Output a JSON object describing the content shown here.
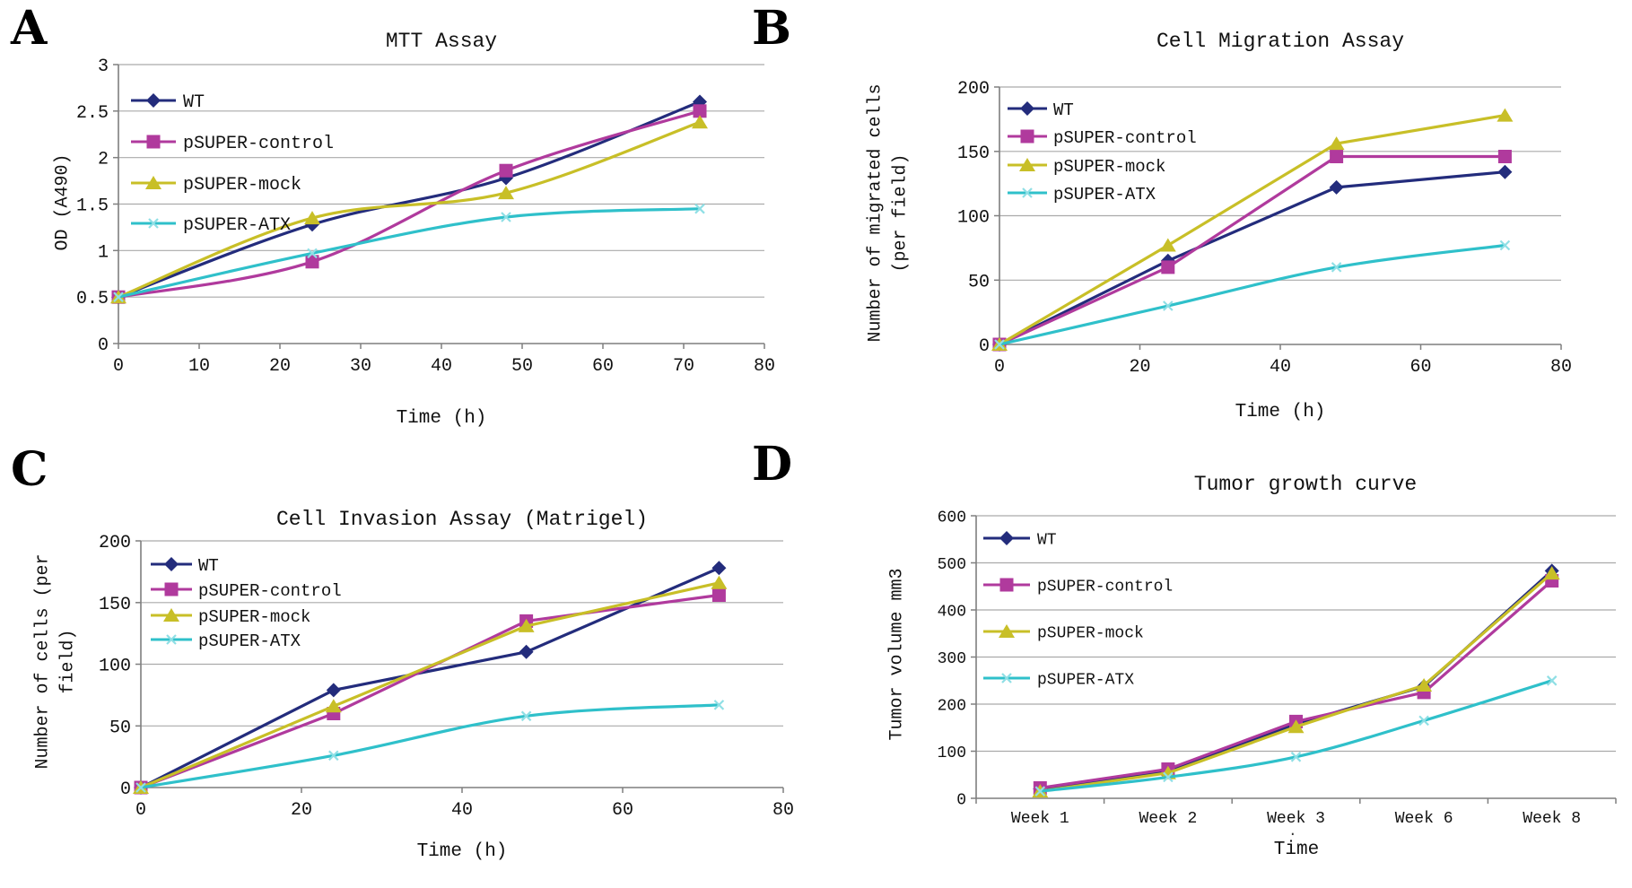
{
  "panels": [
    {
      "letter": "A"
    },
    {
      "letter": "B"
    },
    {
      "letter": "C"
    },
    {
      "letter": "D"
    }
  ],
  "colors": {
    "wt": "#232c7c",
    "control": "#b03a9d",
    "mock": "#c8bf27",
    "atx": "#2fc0ca",
    "atx_marker": "#8fdfe5",
    "grid": "#aaaaaa",
    "axis": "#7f7f7f",
    "text": "#111111"
  },
  "artifact_dot": ".",
  "chart_data": [
    {
      "type": "line",
      "panel": "A",
      "title": "MTT Assay",
      "xlabel": "Time (h)",
      "ylabel_lines": [
        "OD (A490)"
      ],
      "x": [
        0,
        24,
        48,
        72
      ],
      "xlim": [
        0,
        80
      ],
      "xticks": [
        0,
        10,
        20,
        30,
        40,
        50,
        60,
        70,
        80
      ],
      "xtick_labels": [
        "0",
        "10",
        "20",
        "30",
        "40",
        "50",
        "60",
        "70",
        "80"
      ],
      "ylim": [
        0,
        3
      ],
      "yticks": [
        0,
        0.5,
        1,
        1.5,
        2,
        2.5,
        3
      ],
      "ytick_labels": [
        "0",
        "0.5",
        "1",
        "1.5",
        "2",
        "2.5",
        "3"
      ],
      "grid": "horizontal",
      "legend_position": "top-left-inside",
      "series": [
        {
          "name": "WT",
          "color_key": "wt",
          "marker": "diamond",
          "smooth": true,
          "values": [
            0.5,
            1.28,
            1.78,
            2.6
          ]
        },
        {
          "name": "pSUPER-control",
          "color_key": "control",
          "marker": "square",
          "smooth": true,
          "values": [
            0.5,
            0.88,
            1.86,
            2.5
          ]
        },
        {
          "name": "pSUPER-mock",
          "color_key": "mock",
          "marker": "triangle",
          "smooth": true,
          "values": [
            0.5,
            1.35,
            1.62,
            2.38
          ]
        },
        {
          "name": "pSUPER-ATX",
          "color_key": "atx",
          "marker": "x",
          "smooth": true,
          "values": [
            0.5,
            0.97,
            1.36,
            1.45
          ]
        }
      ]
    },
    {
      "type": "line",
      "panel": "B",
      "title": "Cell Migration Assay",
      "xlabel": "Time (h)",
      "ylabel_lines": [
        "Number of migrated cells",
        "(per field)"
      ],
      "x": [
        0,
        24,
        48,
        72
      ],
      "xlim": [
        0,
        80
      ],
      "xticks": [
        0,
        20,
        40,
        60,
        80
      ],
      "xtick_labels": [
        "0",
        "20",
        "40",
        "60",
        "80"
      ],
      "ylim": [
        0,
        200
      ],
      "yticks": [
        0,
        50,
        100,
        150,
        200
      ],
      "ytick_labels": [
        "0",
        "50",
        "100",
        "150",
        "200"
      ],
      "grid": "horizontal",
      "legend_position": "top-left-inside",
      "series": [
        {
          "name": "WT",
          "color_key": "wt",
          "marker": "diamond",
          "smooth": false,
          "values": [
            0,
            65,
            122,
            134
          ]
        },
        {
          "name": "pSUPER-control",
          "color_key": "control",
          "marker": "square",
          "smooth": false,
          "values": [
            0,
            60,
            146,
            146
          ]
        },
        {
          "name": "pSUPER-mock",
          "color_key": "mock",
          "marker": "triangle",
          "smooth": false,
          "values": [
            0,
            77,
            156,
            178
          ]
        },
        {
          "name": "pSUPER-ATX",
          "color_key": "atx",
          "marker": "x",
          "smooth": true,
          "values": [
            0,
            30,
            60,
            77
          ]
        }
      ]
    },
    {
      "type": "line",
      "panel": "C",
      "title": "Cell Invasion Assay (Matrigel)",
      "xlabel": "Time (h)",
      "ylabel_lines": [
        "Number of cells (per",
        "field)"
      ],
      "x": [
        0,
        24,
        48,
        72
      ],
      "xlim": [
        0,
        80
      ],
      "xticks": [
        0,
        20,
        40,
        60,
        80
      ],
      "xtick_labels": [
        "0",
        "20",
        "40",
        "60",
        "80"
      ],
      "ylim": [
        0,
        200
      ],
      "yticks": [
        0,
        50,
        100,
        150,
        200
      ],
      "ytick_labels": [
        "0",
        "50",
        "100",
        "150",
        "200"
      ],
      "grid": "horizontal",
      "legend_position": "top-left-inside",
      "series": [
        {
          "name": "WT",
          "color_key": "wt",
          "marker": "diamond",
          "smooth": false,
          "values": [
            0,
            79,
            110,
            178
          ]
        },
        {
          "name": "pSUPER-control",
          "color_key": "control",
          "marker": "square",
          "smooth": false,
          "values": [
            0,
            60,
            135,
            156
          ]
        },
        {
          "name": "pSUPER-mock",
          "color_key": "mock",
          "marker": "triangle",
          "smooth": false,
          "values": [
            0,
            66,
            131,
            166
          ]
        },
        {
          "name": "pSUPER-ATX",
          "color_key": "atx",
          "marker": "x",
          "smooth": true,
          "values": [
            0,
            26,
            58,
            67
          ]
        }
      ]
    },
    {
      "type": "line",
      "panel": "D",
      "title": "Tumor growth curve",
      "xlabel": "Time",
      "ylabel_lines": [
        "Tumor volume mm3"
      ],
      "categories": [
        "Week 1",
        "Week 2",
        "Week 3",
        "Week 6",
        "Week 8"
      ],
      "ylim": [
        0,
        600
      ],
      "yticks": [
        0,
        100,
        200,
        300,
        400,
        500,
        600
      ],
      "ytick_labels": [
        "0",
        "100",
        "200",
        "300",
        "400",
        "500",
        "600"
      ],
      "grid": "horizontal",
      "legend_position": "top-left-inside",
      "series": [
        {
          "name": "WT",
          "color_key": "wt",
          "marker": "diamond",
          "smooth": false,
          "values": [
            20,
            58,
            158,
            238,
            483
          ]
        },
        {
          "name": "pSUPER-control",
          "color_key": "control",
          "marker": "square",
          "smooth": false,
          "values": [
            22,
            62,
            163,
            225,
            462
          ]
        },
        {
          "name": "pSUPER-mock",
          "color_key": "mock",
          "marker": "triangle",
          "smooth": false,
          "values": [
            15,
            54,
            152,
            240,
            478
          ]
        },
        {
          "name": "pSUPER-ATX",
          "color_key": "atx",
          "marker": "x",
          "smooth": true,
          "values": [
            15,
            45,
            88,
            165,
            250
          ]
        }
      ]
    }
  ]
}
